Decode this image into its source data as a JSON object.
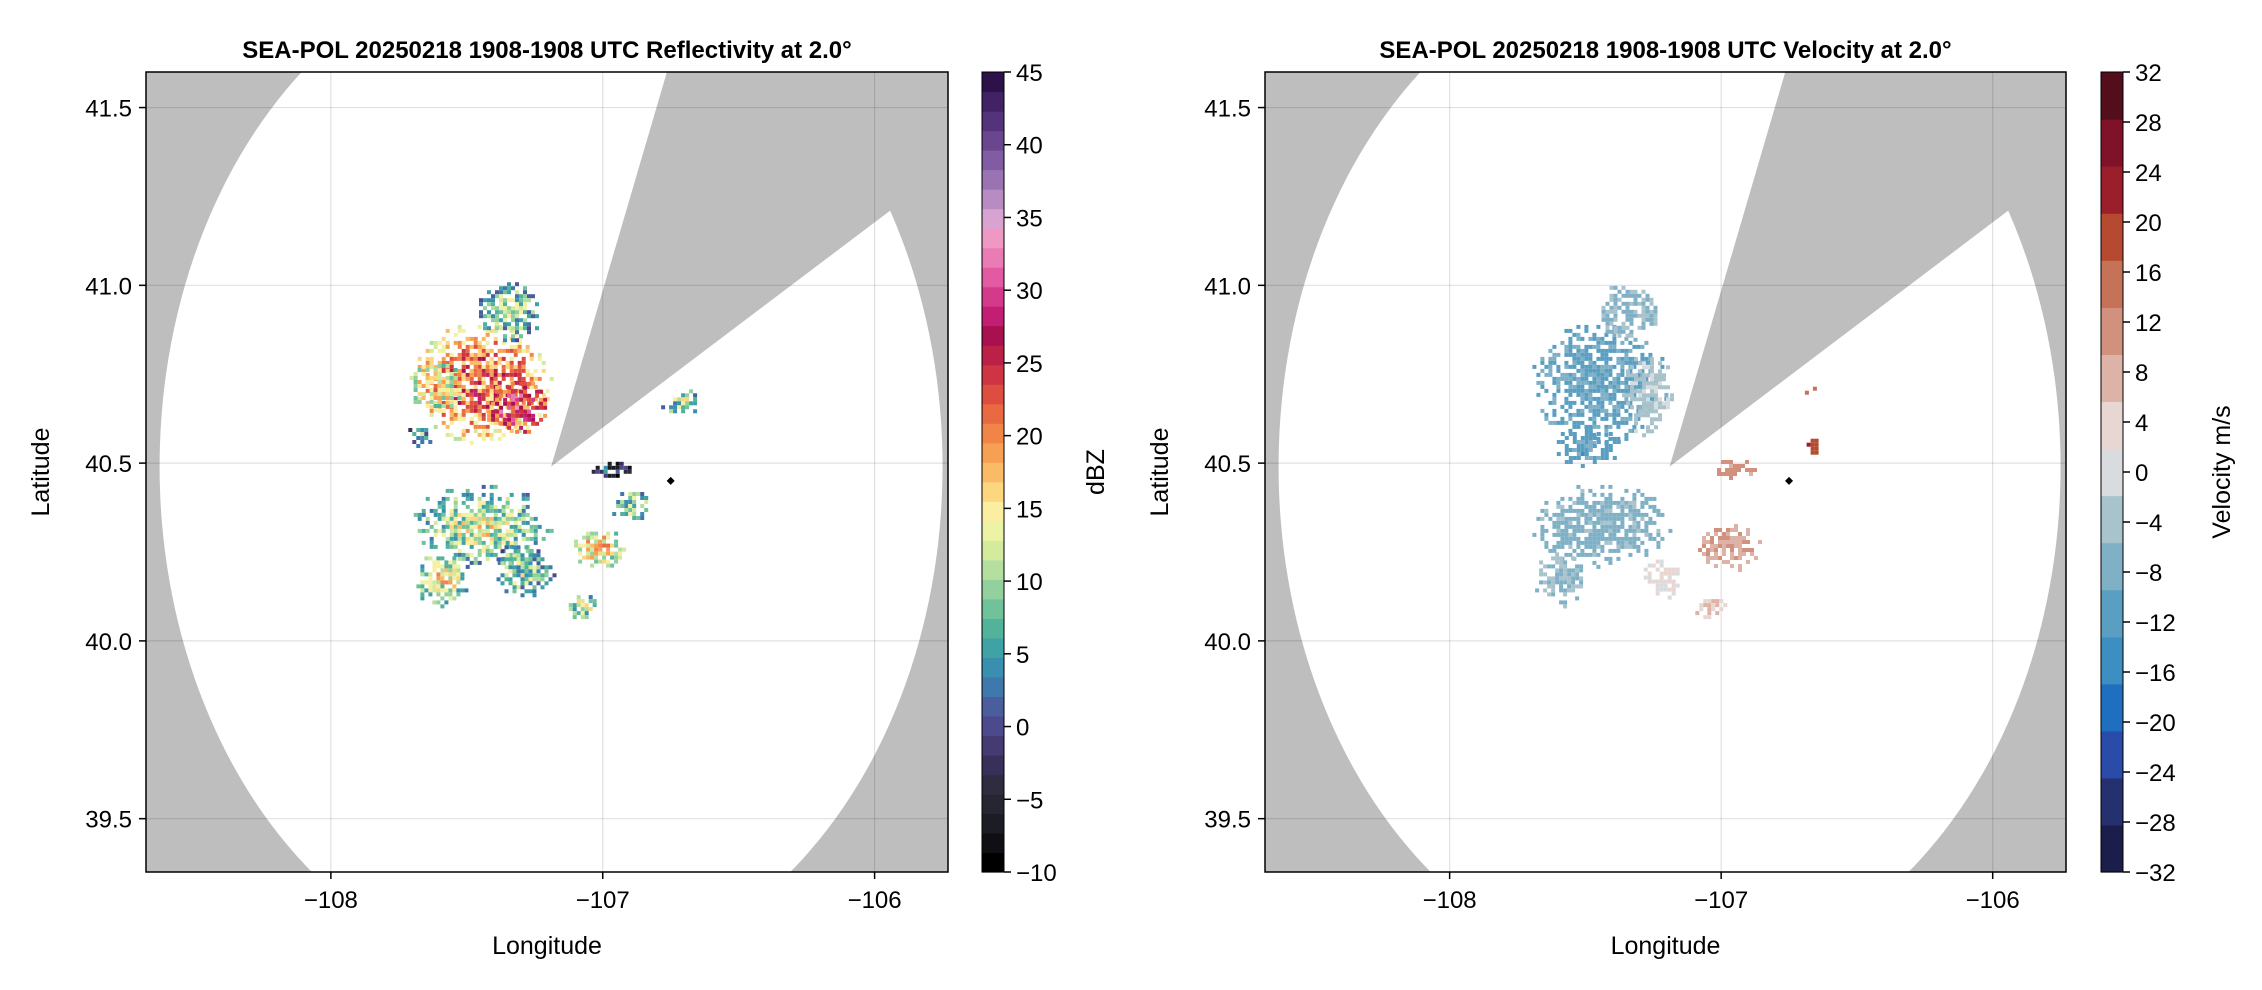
{
  "chart_data": [
    {
      "type": "heatmap",
      "title": "SEA-POL 20250218 1908-1908 UTC Reflectivity at 2.0°",
      "xlabel": "Longitude",
      "ylabel": "Latitude",
      "xlim": [
        -108.68,
        -105.73
      ],
      "ylim": [
        39.35,
        41.6
      ],
      "xticks": [
        -108,
        -107,
        -106
      ],
      "xtick_labels": [
        "−108",
        "−107",
        "−106"
      ],
      "yticks": [
        39.5,
        40.0,
        40.5,
        41.0,
        41.5
      ],
      "ytick_labels": [
        "39.5",
        "40.0",
        "40.5",
        "41.0",
        "41.5"
      ],
      "grid": true,
      "radar_center": [
        -107.19,
        40.49
      ],
      "radar_range_deg": 1.44,
      "marker": [
        -106.75,
        40.45
      ],
      "colorbar": {
        "label": "dBZ",
        "range": [
          -10,
          45
        ],
        "ticks": [
          -10,
          -5,
          0,
          5,
          10,
          15,
          20,
          25,
          30,
          35,
          40,
          45
        ],
        "tick_labels": [
          "−10",
          "−5",
          "0",
          "5",
          "10",
          "15",
          "20",
          "25",
          "30",
          "35",
          "40",
          "45"
        ],
        "colors": [
          "#000000",
          "#0f0f14",
          "#1c1c24",
          "#262632",
          "#302c40",
          "#38305a",
          "#453a72",
          "#4c4a8c",
          "#4a5e9e",
          "#3f78ad",
          "#3a8fb0",
          "#3fa3a6",
          "#52b39a",
          "#70c29a",
          "#92d19e",
          "#b5df9f",
          "#d4ea9c",
          "#ecf3a4",
          "#fbeea0",
          "#fcd77f",
          "#fbbb66",
          "#f7a053",
          "#f18548",
          "#e96a42",
          "#de4e40",
          "#cf3442",
          "#bb2047",
          "#a8104f",
          "#c21e73",
          "#d43a8a",
          "#e25aa1",
          "#ea7cb5",
          "#ef98c4",
          "#d8a3d1",
          "#b68cc2",
          "#9a73b3",
          "#815ca2",
          "#6a468f",
          "#55337b",
          "#412365",
          "#2c1249"
        ]
      },
      "fields": [
        {
          "lon": -107.45,
          "lat": 40.73,
          "rx": 0.26,
          "ry": 0.17,
          "value": 22
        },
        {
          "lon": -107.32,
          "lat": 40.66,
          "rx": 0.12,
          "ry": 0.08,
          "value": 28
        },
        {
          "lon": -107.62,
          "lat": 40.72,
          "rx": 0.12,
          "ry": 0.07,
          "value": 16
        },
        {
          "lon": -107.35,
          "lat": 40.93,
          "rx": 0.12,
          "ry": 0.09,
          "value": 10
        },
        {
          "lon": -107.68,
          "lat": 40.58,
          "rx": 0.05,
          "ry": 0.03,
          "value": 8
        },
        {
          "lon": -107.45,
          "lat": 40.33,
          "rx": 0.26,
          "ry": 0.12,
          "value": 12
        },
        {
          "lon": -107.6,
          "lat": 40.18,
          "rx": 0.1,
          "ry": 0.08,
          "value": 14
        },
        {
          "lon": -107.3,
          "lat": 40.2,
          "rx": 0.12,
          "ry": 0.08,
          "value": 10
        },
        {
          "lon": -107.02,
          "lat": 40.27,
          "rx": 0.1,
          "ry": 0.06,
          "value": 16
        },
        {
          "lon": -106.9,
          "lat": 40.38,
          "rx": 0.08,
          "ry": 0.05,
          "value": 12
        },
        {
          "lon": -106.98,
          "lat": 40.49,
          "rx": 0.09,
          "ry": 0.025,
          "value": 0
        },
        {
          "lon": -106.72,
          "lat": 40.68,
          "rx": 0.08,
          "ry": 0.05,
          "value": 10
        },
        {
          "lon": -107.08,
          "lat": 40.1,
          "rx": 0.06,
          "ry": 0.04,
          "value": 12
        }
      ]
    },
    {
      "type": "heatmap",
      "title": "SEA-POL 20250218 1908-1908 UTC Velocity at 2.0°",
      "xlabel": "Longitude",
      "ylabel": "Latitude",
      "xlim": [
        -108.68,
        -105.73
      ],
      "ylim": [
        39.35,
        41.6
      ],
      "xticks": [
        -108,
        -107,
        -106
      ],
      "xtick_labels": [
        "−108",
        "−107",
        "−106"
      ],
      "yticks": [
        39.5,
        40.0,
        40.5,
        41.0,
        41.5
      ],
      "ytick_labels": [
        "39.5",
        "40.0",
        "40.5",
        "41.0",
        "41.5"
      ],
      "grid": true,
      "radar_center": [
        -107.19,
        40.49
      ],
      "radar_range_deg": 1.44,
      "marker": [
        -106.75,
        40.45
      ],
      "colorbar": {
        "label": "Velocity m/s",
        "range": [
          -32,
          32
        ],
        "ticks": [
          -32,
          -28,
          -24,
          -20,
          -16,
          -12,
          -8,
          -4,
          0,
          4,
          8,
          12,
          16,
          20,
          24,
          28,
          32
        ],
        "tick_labels": [
          "−32",
          "−28",
          "−24",
          "−20",
          "−16",
          "−12",
          "−8",
          "−4",
          "0",
          "4",
          "8",
          "12",
          "16",
          "20",
          "24",
          "28",
          "32"
        ],
        "colors": [
          "#1b1d4a",
          "#25306e",
          "#2a4ca8",
          "#1f6fc0",
          "#3c8fc0",
          "#5a9fc1",
          "#7fb0c6",
          "#a8c3cc",
          "#d8dcdf",
          "#e8d6d3",
          "#dcb3a6",
          "#d1917c",
          "#c57258",
          "#b54a30",
          "#9a1f2b",
          "#7f1228",
          "#540d1b"
        ]
      },
      "fields": [
        {
          "lon": -107.45,
          "lat": 40.73,
          "rx": 0.26,
          "ry": 0.17,
          "value": -10
        },
        {
          "lon": -107.28,
          "lat": 40.7,
          "rx": 0.1,
          "ry": 0.12,
          "value": -3
        },
        {
          "lon": -107.5,
          "lat": 40.55,
          "rx": 0.12,
          "ry": 0.06,
          "value": -11
        },
        {
          "lon": -107.35,
          "lat": 40.93,
          "rx": 0.12,
          "ry": 0.08,
          "value": -6
        },
        {
          "lon": -107.45,
          "lat": 40.33,
          "rx": 0.26,
          "ry": 0.12,
          "value": -7
        },
        {
          "lon": -107.6,
          "lat": 40.18,
          "rx": 0.1,
          "ry": 0.08,
          "value": -5
        },
        {
          "lon": -107.22,
          "lat": 40.18,
          "rx": 0.08,
          "ry": 0.06,
          "value": 2
        },
        {
          "lon": -106.98,
          "lat": 40.27,
          "rx": 0.12,
          "ry": 0.07,
          "value": 9
        },
        {
          "lon": -106.95,
          "lat": 40.49,
          "rx": 0.08,
          "ry": 0.03,
          "value": 11
        },
        {
          "lon": -106.72,
          "lat": 40.72,
          "rx": 0.06,
          "ry": 0.04,
          "value": 15
        },
        {
          "lon": -106.67,
          "lat": 40.55,
          "rx": 0.03,
          "ry": 0.03,
          "value": 19
        },
        {
          "lon": -107.05,
          "lat": 40.1,
          "rx": 0.06,
          "ry": 0.04,
          "value": 6
        }
      ]
    }
  ]
}
